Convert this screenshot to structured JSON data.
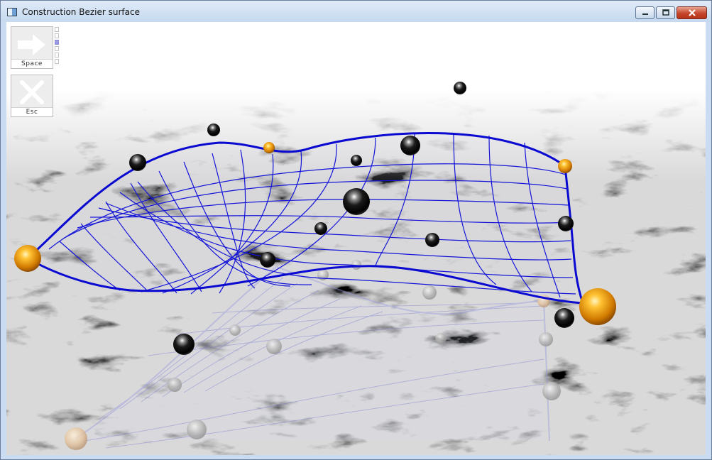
{
  "window": {
    "title": "Construction Bezier surface",
    "icon": "window-app-icon",
    "controls": {
      "minimize": "minimize-icon",
      "maximize": "maximize-icon",
      "close": "close-icon"
    }
  },
  "commands": [
    {
      "label": "Space",
      "icon": "arrow-right-icon"
    },
    {
      "label": "Esc",
      "icon": "close-x-icon"
    }
  ],
  "steps": {
    "count": 6,
    "active_index": 2
  },
  "colors": {
    "curve": "#0000cc",
    "shadow_curve": "#9999e0",
    "control_point": "#111111",
    "corner_point": "#f0a020",
    "titlebar": "#c6d9ef"
  }
}
